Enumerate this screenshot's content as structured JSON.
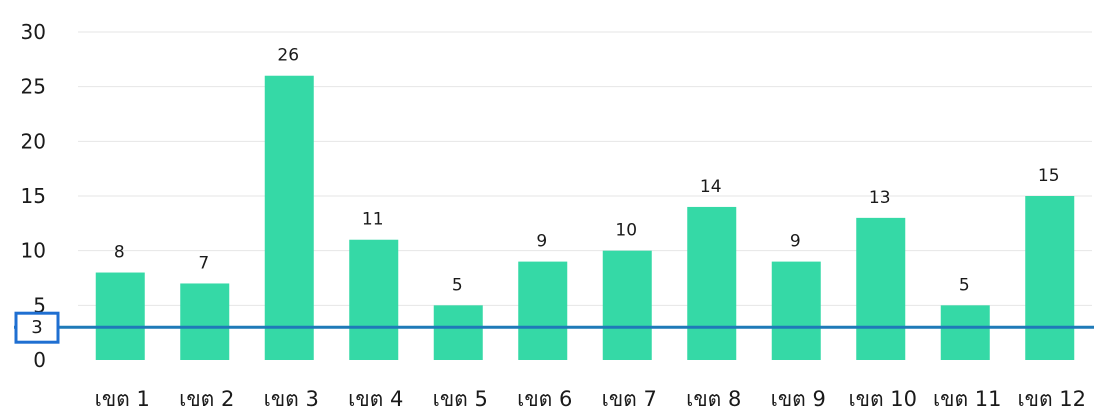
{
  "chart_data": {
    "type": "bar",
    "categories": [
      "เขต 1",
      "เขต 2",
      "เขต 3",
      "เขต 4",
      "เขต 5",
      "เขต 6",
      "เขต 7",
      "เขต 8",
      "เขต 9",
      "เขต 10",
      "เขต 11",
      "เขต 12"
    ],
    "series": [
      {
        "values": [
          8,
          7,
          26,
          11,
          5,
          9,
          10,
          14,
          9,
          13,
          5,
          15
        ]
      }
    ],
    "ylim": [
      0,
      30
    ],
    "yticks": [
      0,
      5,
      10,
      15,
      20,
      25,
      30
    ],
    "grid": true,
    "reference_line": {
      "value": 3,
      "label": "3",
      "color": "#1f7ab8"
    },
    "colors": {
      "bar": "#35d9a6",
      "reference": "#1f7ab8",
      "label_box": "#1f6fd1",
      "grid": "#e6e6e6"
    }
  }
}
